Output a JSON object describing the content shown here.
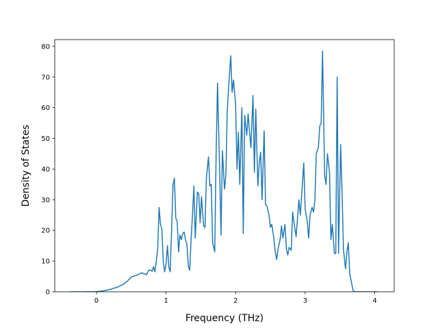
{
  "chart_data": {
    "type": "line",
    "xlabel": "Frequency (THz)",
    "ylabel": "Density of States",
    "color": "#1f77b4",
    "xlim": [
      -0.6,
      4.28
    ],
    "ylim": [
      0,
      82.2
    ],
    "xticks": [
      0,
      1,
      2,
      3,
      4
    ],
    "yticks": [
      0,
      10,
      20,
      30,
      40,
      50,
      60,
      70,
      80
    ],
    "x": [
      -0.38,
      -0.2,
      0,
      0.1,
      0.2,
      0.3,
      0.4,
      0.45,
      0.5,
      0.55,
      0.6,
      0.65,
      0.7,
      0.72,
      0.75,
      0.78,
      0.8,
      0.82,
      0.84,
      0.86,
      0.88,
      0.9,
      0.92,
      0.94,
      0.96,
      0.98,
      1.0,
      1.02,
      1.04,
      1.06,
      1.08,
      1.1,
      1.12,
      1.14,
      1.16,
      1.18,
      1.2,
      1.22,
      1.24,
      1.26,
      1.28,
      1.3,
      1.32,
      1.34,
      1.36,
      1.38,
      1.4,
      1.42,
      1.45,
      1.47,
      1.49,
      1.51,
      1.54,
      1.56,
      1.58,
      1.61,
      1.63,
      1.65,
      1.67,
      1.7,
      1.72,
      1.74,
      1.77,
      1.79,
      1.81,
      1.84,
      1.86,
      1.88,
      1.9,
      1.93,
      1.95,
      1.97,
      2.0,
      2.02,
      2.04,
      2.06,
      2.09,
      2.11,
      2.13,
      2.16,
      2.18,
      2.2,
      2.22,
      2.25,
      2.27,
      2.29,
      2.32,
      2.34,
      2.36,
      2.38,
      2.41,
      2.43,
      2.45,
      2.48,
      2.5,
      2.52,
      2.55,
      2.57,
      2.59,
      2.61,
      2.64,
      2.66,
      2.68,
      2.71,
      2.73,
      2.75,
      2.77,
      2.8,
      2.82,
      2.84,
      2.87,
      2.89,
      2.91,
      2.93,
      2.96,
      2.98,
      3.0,
      3.03,
      3.05,
      3.07,
      3.1,
      3.12,
      3.14,
      3.16,
      3.19,
      3.21,
      3.23,
      3.25,
      3.28,
      3.3,
      3.32,
      3.35,
      3.37,
      3.39,
      3.42,
      3.44,
      3.46,
      3.48,
      3.51,
      3.53,
      3.55,
      3.58,
      3.6,
      3.62,
      3.64,
      3.67,
      3.69,
      3.71,
      3.75,
      3.9,
      4.05
    ],
    "values": [
      0,
      0,
      0.05,
      0.3,
      0.8,
      1.5,
      2.6,
      3.6,
      4.8,
      5.2,
      5.6,
      6.2,
      5.7,
      5.6,
      7,
      7.1,
      6.7,
      8.2,
      6.5,
      10,
      14,
      27.5,
      22,
      20.5,
      10,
      6.5,
      9,
      15,
      8,
      6.5,
      20,
      35,
      37,
      24,
      23,
      13,
      18.5,
      17,
      19,
      19.5,
      17,
      15.5,
      8.5,
      7,
      17,
      25,
      34.5,
      17.5,
      32.5,
      32,
      22.5,
      31,
      21.5,
      21,
      37,
      44,
      34.5,
      35,
      16,
      13,
      45,
      68,
      40,
      18.5,
      46,
      33.5,
      38,
      59,
      67,
      77,
      65,
      69,
      61,
      40,
      52,
      35,
      60,
      19,
      57.5,
      51,
      58,
      52,
      47,
      64,
      39,
      59.5,
      34.5,
      42,
      45.5,
      30,
      52.5,
      28.5,
      28,
      25,
      21,
      22,
      17.5,
      13,
      10.5,
      14,
      17,
      21.5,
      17.5,
      22,
      14,
      12,
      14.5,
      13.5,
      26,
      22.5,
      18,
      24,
      30,
      25,
      35,
      42,
      27,
      23,
      17.5,
      25,
      27.5,
      26,
      30,
      45,
      47,
      54,
      55,
      78.5,
      38,
      35,
      45,
      39,
      17,
      22,
      12.5,
      12.5,
      70,
      12.5,
      48,
      33,
      14,
      7.5,
      13,
      16,
      6,
      2.5,
      0.3,
      0,
      0,
      0,
      0
    ]
  }
}
